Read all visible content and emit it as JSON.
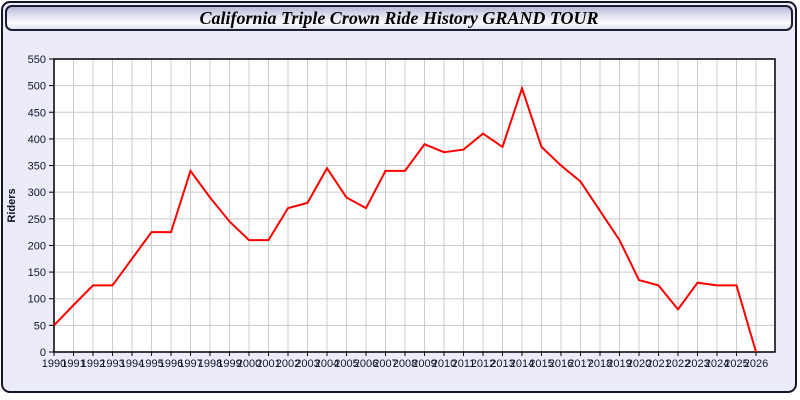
{
  "window": {
    "title": "California Triple Crown Ride History GRAND TOUR"
  },
  "colors": {
    "line": "#ff0000",
    "page_background": "#ebebfa",
    "plot_background": "#ffffff",
    "gridline": "#cccccc",
    "frame": "#000000",
    "tick_text": "#13132b",
    "window_border": "#16162b"
  },
  "chart_data": {
    "type": "line",
    "title": "California Triple Crown Ride History GRAND TOUR",
    "xlabel": "",
    "ylabel": "Riders",
    "ylim": [
      0,
      550
    ],
    "ytick_step": 50,
    "grid": true,
    "legend_position": "none",
    "x": [
      1990,
      1991,
      1992,
      1993,
      1994,
      1995,
      1996,
      1997,
      1998,
      1999,
      2000,
      2001,
      2002,
      2003,
      2004,
      2005,
      2006,
      2007,
      2008,
      2009,
      2010,
      2011,
      2012,
      2013,
      2014,
      2015,
      2016,
      2017,
      2018,
      2019,
      2020,
      2021,
      2022,
      2023,
      2024,
      2025,
      2026
    ],
    "series": [
      {
        "name": "Riders",
        "color": "#ff0000",
        "values": [
          50,
          88,
          125,
          125,
          175,
          225,
          225,
          340,
          290,
          245,
          210,
          210,
          270,
          280,
          345,
          290,
          270,
          340,
          340,
          390,
          375,
          380,
          410,
          385,
          495,
          385,
          350,
          320,
          265,
          210,
          135,
          125,
          80,
          130,
          125,
          125,
          0
        ]
      }
    ]
  }
}
